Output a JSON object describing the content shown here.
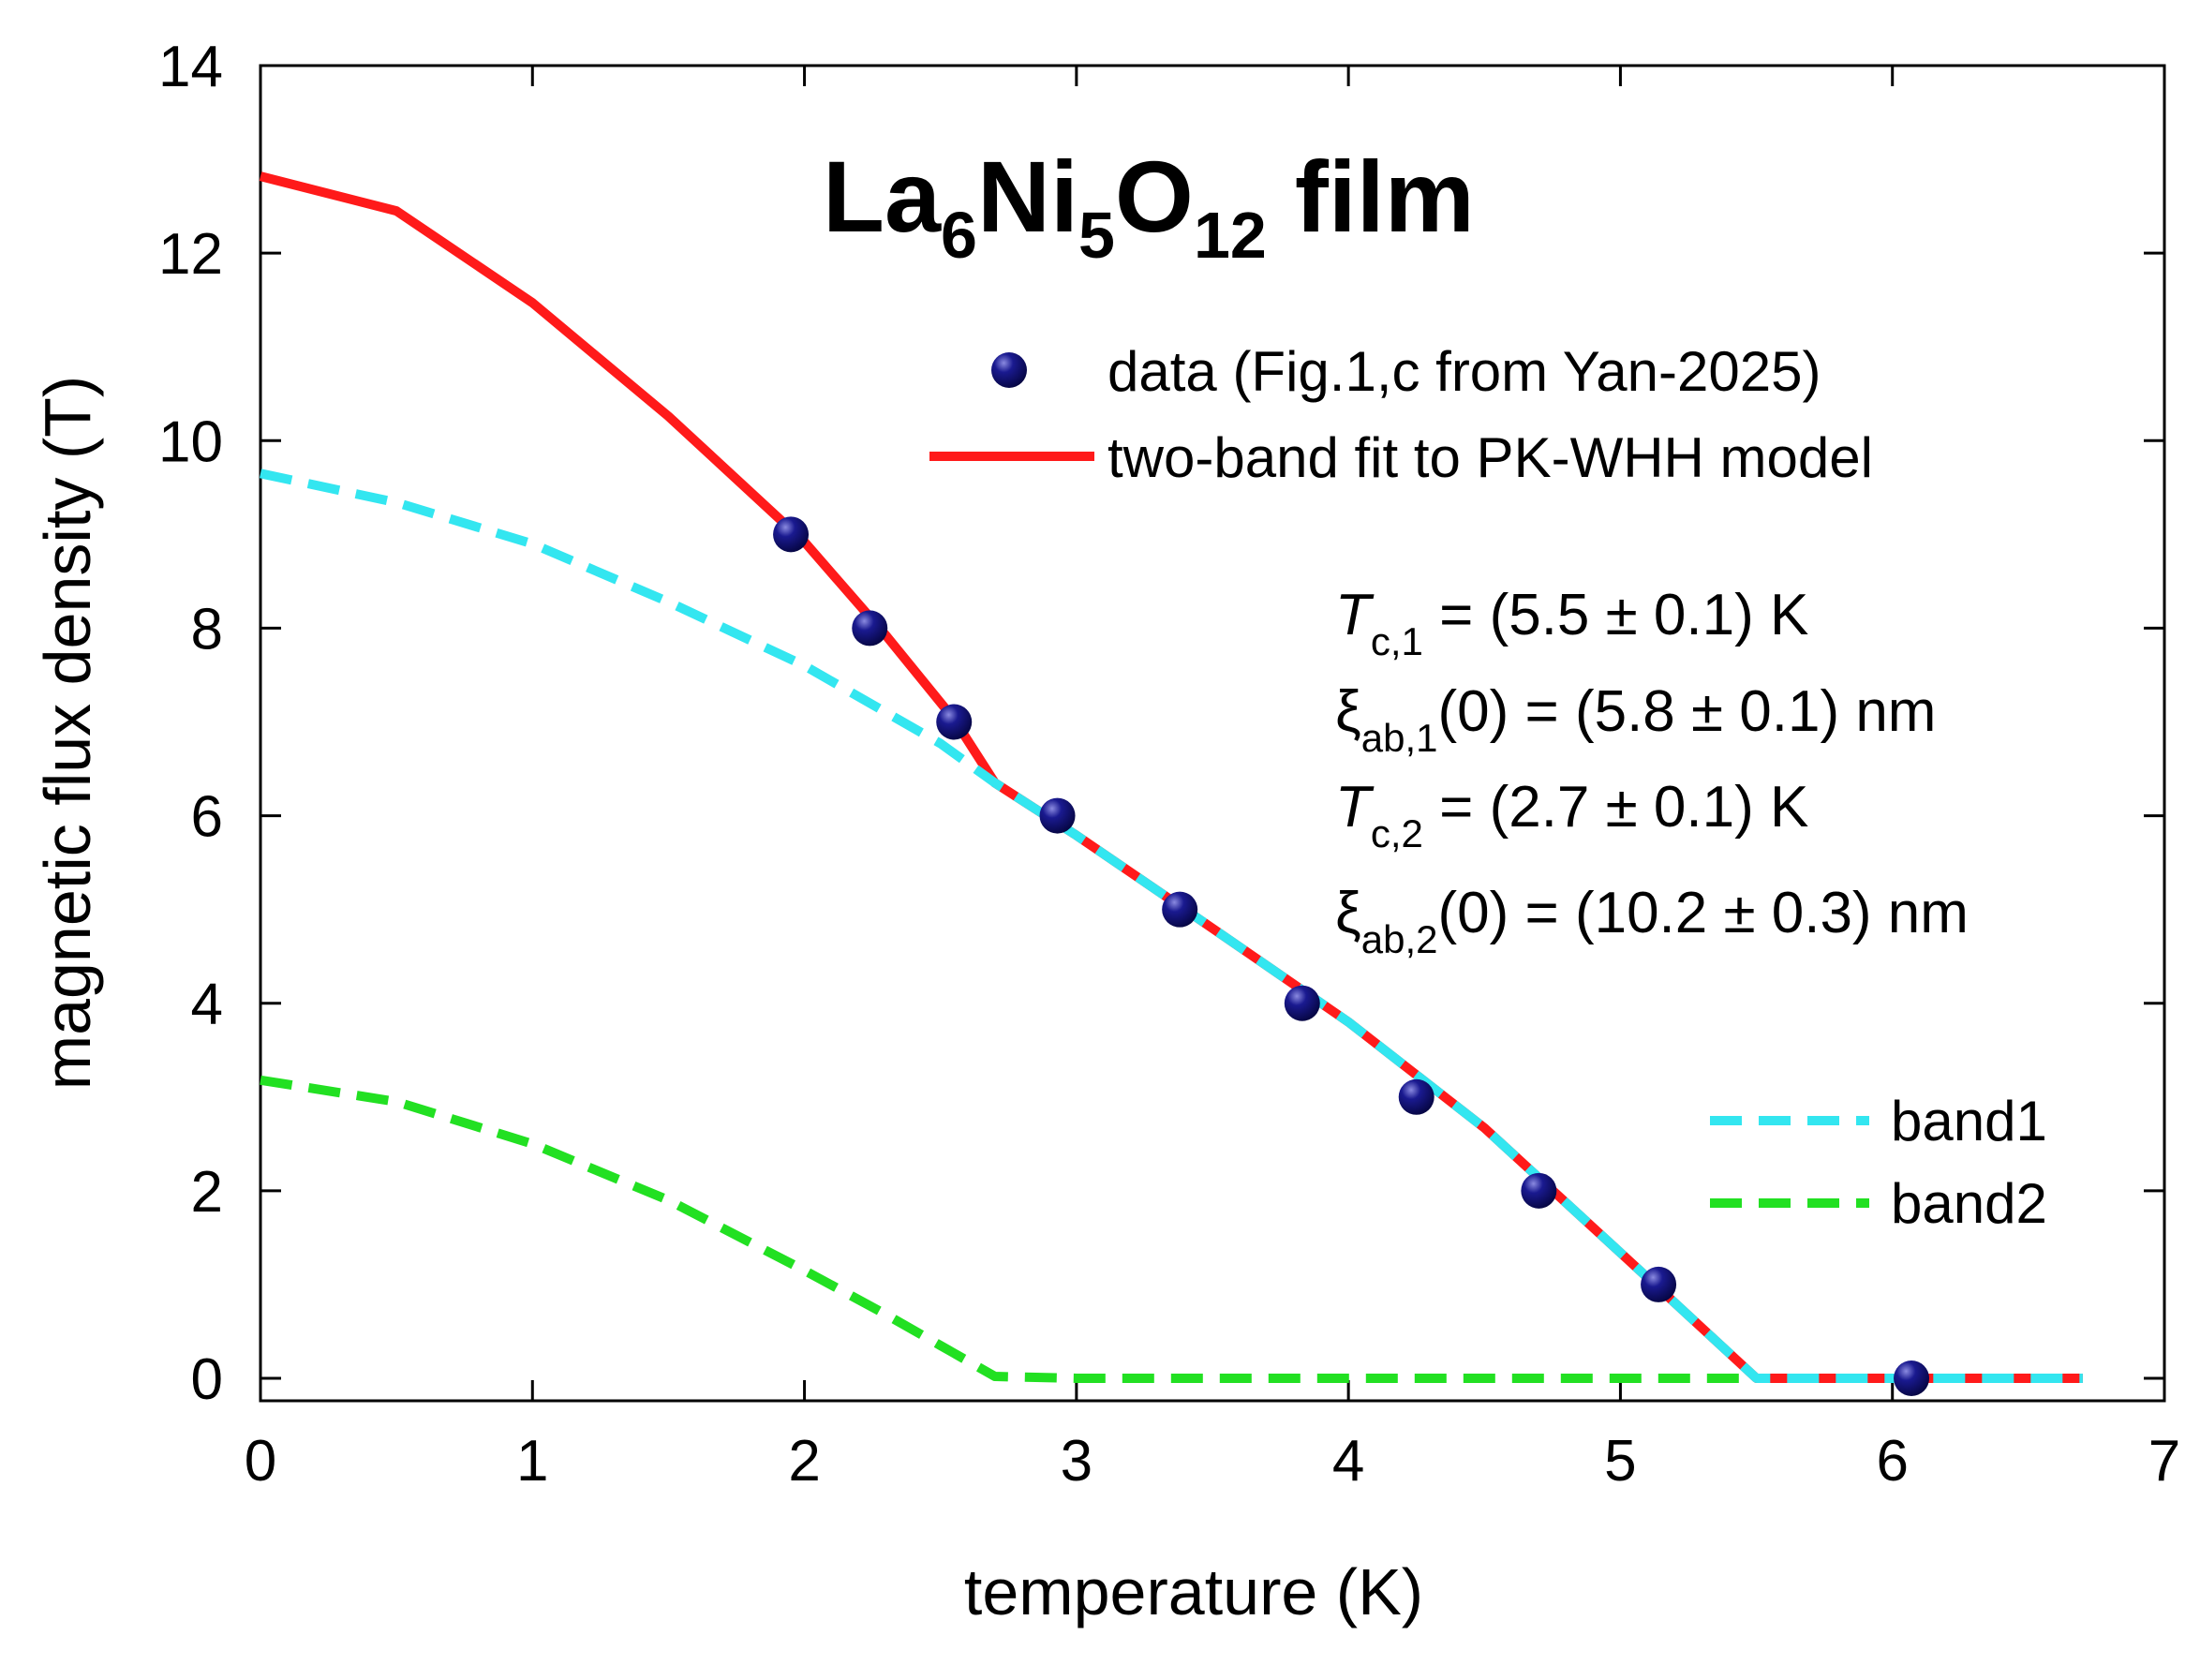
{
  "chart_data": {
    "type": "line",
    "title": {
      "formula": [
        {
          "text": "La",
          "sub": false
        },
        {
          "text": "6",
          "sub": true
        },
        {
          "text": "Ni",
          "sub": false
        },
        {
          "text": "5",
          "sub": true
        },
        {
          "text": "O",
          "sub": false
        },
        {
          "text": "12",
          "sub": true
        },
        {
          "text": " film",
          "sub": false
        }
      ]
    },
    "xlabel": "temperature (K)",
    "ylabel": "magnetic flux density (T)",
    "xlim": [
      0,
      7
    ],
    "ylim": [
      0,
      14
    ],
    "xticks": [
      "0",
      "1",
      "2",
      "3",
      "4",
      "5",
      "6",
      "7"
    ],
    "yticks": [
      "0",
      "2",
      "4",
      "6",
      "8",
      "10",
      "12",
      "14"
    ],
    "grid": false,
    "series": [
      {
        "name": "data (Fig.1,c from Yan-2025)",
        "kind": "scatter",
        "color": "#0a0a6e",
        "x": [
          1.95,
          2.24,
          2.55,
          2.93,
          3.38,
          3.83,
          4.25,
          4.7,
          5.14,
          6.07
        ],
        "y": [
          9.0,
          8.0,
          7.0,
          6.0,
          5.0,
          4.0,
          3.0,
          2.0,
          1.0,
          0.0
        ]
      },
      {
        "name": "two-band fit to PK-WHH model",
        "kind": "line",
        "style": "solid",
        "color": "#ff1a1a",
        "x": [
          0,
          0.5,
          1.0,
          1.5,
          2.0,
          2.3,
          2.55,
          2.7,
          3.0,
          3.5,
          4.0,
          4.5,
          5.0,
          5.5,
          6.0,
          6.7
        ],
        "y": [
          12.82,
          12.45,
          11.47,
          10.26,
          8.92,
          7.92,
          7.03,
          6.35,
          5.79,
          4.8,
          3.8,
          2.67,
          1.34,
          0.0,
          0.0,
          0.0
        ]
      },
      {
        "name": "band1",
        "kind": "line",
        "style": "dashed",
        "color": "#33e6f0",
        "x": [
          0,
          0.5,
          1.0,
          1.5,
          2.0,
          2.5,
          2.7,
          3.0,
          3.5,
          4.0,
          4.5,
          5.0,
          5.5,
          6.0,
          6.7
        ],
        "y": [
          9.65,
          9.34,
          8.9,
          8.28,
          7.6,
          6.77,
          6.35,
          5.79,
          4.8,
          3.8,
          2.67,
          1.34,
          0.0,
          0.0,
          0.0
        ]
      },
      {
        "name": "band2",
        "kind": "line",
        "style": "dashed",
        "color": "#22e022",
        "x": [
          0,
          0.5,
          1.0,
          1.5,
          2.0,
          2.3,
          2.5,
          2.7,
          3.0,
          4.0,
          5.0,
          6.0,
          6.7
        ],
        "y": [
          3.18,
          2.95,
          2.5,
          1.9,
          1.15,
          0.68,
          0.35,
          0.02,
          0.0,
          0.0,
          0.0,
          0.0,
          0.0
        ]
      }
    ],
    "annotations": [
      {
        "symbol": "T",
        "italic": true,
        "sub": "c,1",
        "rest": " = (5.5 ± 0.1) K"
      },
      {
        "symbol": "ξ",
        "italic": false,
        "sub": "ab,1",
        "rest": "(0) = (5.8 ± 0.1) nm"
      },
      {
        "symbol": "T",
        "italic": true,
        "sub": "c,2",
        "rest": " = (2.7 ± 0.1) K"
      },
      {
        "symbol": "ξ",
        "italic": false,
        "sub": "ab,2",
        "rest": "(0) = (10.2 ± 0.3) nm"
      }
    ],
    "legend_placement": "top-right and bottom-right"
  }
}
